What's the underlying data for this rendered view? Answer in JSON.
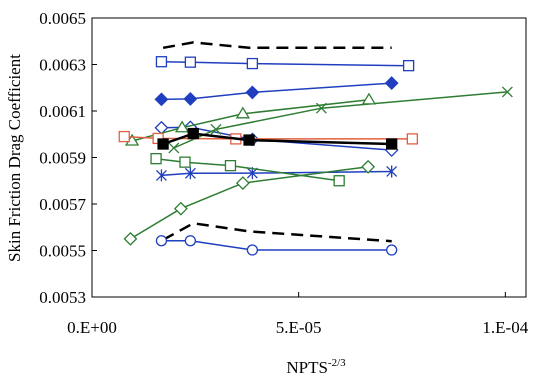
{
  "chart_data": {
    "type": "scatter",
    "title": "",
    "ylabel": "Skin Friction Drag Coefficient",
    "xlabel_base": "NPTS",
    "xlabel_exp": "-2/3",
    "xlim": [
      0,
      0.000105
    ],
    "ylim": [
      0.0053,
      0.0065
    ],
    "x_ticks": [
      0,
      5e-05,
      0.0001
    ],
    "x_tick_labels": [
      "0.E+00",
      "5.E-05",
      "1.E-04"
    ],
    "y_ticks": [
      0.0053,
      0.0055,
      0.0057,
      0.0059,
      0.0061,
      0.0063,
      0.0065
    ],
    "y_tick_labels": [
      "0.0053",
      "0.0055",
      "0.0057",
      "0.0059",
      "0.0061",
      "0.0063",
      "0.0065"
    ],
    "grid": false,
    "legend": "none",
    "series": [
      {
        "color": "#000000",
        "line": "dashed",
        "marker": "none",
        "x": [
          1.72e-05,
          2.45e-05,
          3.8e-05,
          7.25e-05
        ],
        "y": [
          0.006372,
          0.006395,
          0.006372,
          0.006372
        ]
      },
      {
        "color": "#000000",
        "line": "dashed",
        "marker": "none",
        "x": [
          1.72e-05,
          2.45e-05,
          3.8e-05,
          7.25e-05
        ],
        "y": [
          0.005546,
          0.005617,
          0.005582,
          0.00554
        ]
      },
      {
        "color": "#1f3fbf",
        "line": "solid",
        "marker": "open-square",
        "x": [
          1.68e-05,
          2.38e-05,
          3.88e-05,
          7.66e-05
        ],
        "y": [
          0.006312,
          0.00631,
          0.006304,
          0.006295
        ]
      },
      {
        "color": "#1f3fbf",
        "line": "solid",
        "marker": "filled-diamond",
        "x": [
          1.68e-05,
          2.38e-05,
          3.88e-05,
          7.25e-05
        ],
        "y": [
          0.00615,
          0.006152,
          0.00618,
          0.00622
        ]
      },
      {
        "color": "#1f3fbf",
        "line": "solid",
        "marker": "open-diamond",
        "x": [
          1.68e-05,
          2.38e-05,
          3.88e-05,
          7.25e-05
        ],
        "y": [
          0.006028,
          0.00603,
          0.005978,
          0.005932
        ]
      },
      {
        "color": "#1f3fbf",
        "line": "solid",
        "marker": "asterisk",
        "x": [
          1.68e-05,
          2.38e-05,
          3.88e-05,
          7.25e-05
        ],
        "y": [
          0.005823,
          0.005832,
          0.005833,
          0.00584
        ]
      },
      {
        "color": "#1f3fbf",
        "line": "solid",
        "marker": "open-circle",
        "x": [
          1.68e-05,
          2.38e-05,
          3.88e-05,
          7.25e-05
        ],
        "y": [
          0.005542,
          0.005542,
          0.005502,
          0.005502
        ]
      },
      {
        "color": "#2e7d32",
        "line": "solid",
        "marker": "x",
        "x": [
          1.98e-05,
          3e-05,
          5.55e-05,
          0.0001005
        ],
        "y": [
          0.005941,
          0.006021,
          0.006112,
          0.006182
        ]
      },
      {
        "color": "#2e7d32",
        "line": "solid",
        "marker": "open-triangle",
        "x": [
          9.7e-06,
          2.18e-05,
          3.65e-05,
          6.7e-05
        ],
        "y": [
          0.005971,
          0.006028,
          0.006088,
          0.006148
        ]
      },
      {
        "color": "#2e7d32",
        "line": "solid",
        "marker": "open-square",
        "x": [
          1.55e-05,
          2.25e-05,
          3.35e-05,
          5.98e-05
        ],
        "y": [
          0.005895,
          0.00588,
          0.005865,
          0.0058
        ]
      },
      {
        "color": "#2e7d32",
        "line": "solid",
        "marker": "open-diamond",
        "x": [
          9.3e-06,
          2.15e-05,
          3.65e-05,
          6.68e-05
        ],
        "y": [
          0.00555,
          0.00568,
          0.00579,
          0.00586
        ]
      },
      {
        "color": "#e06040",
        "line": "solid",
        "marker": "open-square",
        "x": [
          7.8e-06,
          1.6e-05,
          3.48e-05,
          7.75e-05
        ],
        "y": [
          0.00599,
          0.005982,
          0.00598,
          0.00598
        ]
      },
      {
        "color": "#000000",
        "line": "solid",
        "marker": "filled-square",
        "thick": true,
        "x": [
          1.72e-05,
          2.45e-05,
          3.8e-05,
          7.25e-05
        ],
        "y": [
          0.005958,
          0.006003,
          0.005975,
          0.005958
        ]
      }
    ]
  }
}
